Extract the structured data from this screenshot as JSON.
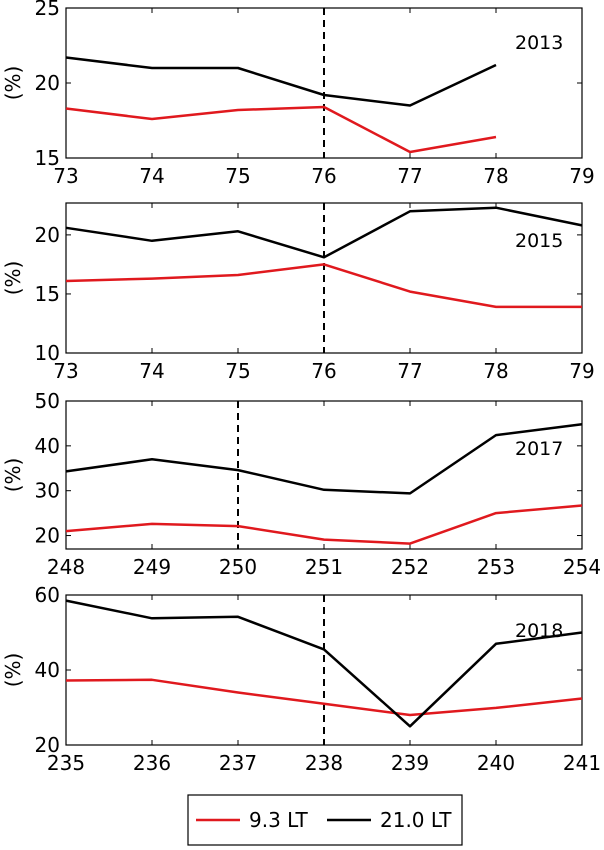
{
  "colors": {
    "series_red": "#e0191e",
    "series_black": "#000000",
    "frame": "#000000"
  },
  "legend": {
    "entries": [
      "9.3 LT",
      "21.0 LT"
    ],
    "placement": "bottom-center"
  },
  "chart_data": [
    {
      "type": "line",
      "year_label": "2013",
      "ylabel": "(%)",
      "xlim": [
        73,
        79
      ],
      "ylim": [
        15,
        25
      ],
      "xticks": [
        73,
        74,
        75,
        76,
        77,
        78,
        79
      ],
      "yticks": [
        15,
        20,
        25
      ],
      "event_x": 76,
      "series": [
        {
          "name": "9.3 LT",
          "color": "#e0191e",
          "x": [
            73,
            74,
            75,
            76,
            77,
            78
          ],
          "y": [
            18.3,
            17.6,
            18.2,
            18.4,
            15.4,
            16.4
          ]
        },
        {
          "name": "21.0 LT",
          "color": "#000000",
          "x": [
            73,
            74,
            75,
            76,
            77,
            78
          ],
          "y": [
            21.7,
            21.0,
            21.0,
            19.2,
            18.5,
            21.2
          ]
        }
      ]
    },
    {
      "type": "line",
      "year_label": "2015",
      "ylabel": "(%)",
      "xlim": [
        73,
        79
      ],
      "ylim": [
        10,
        22.7
      ],
      "xticks": [
        73,
        74,
        75,
        76,
        77,
        78,
        79
      ],
      "yticks": [
        10,
        15,
        20
      ],
      "event_x": 76,
      "series": [
        {
          "name": "9.3 LT",
          "color": "#e0191e",
          "x": [
            73,
            74,
            75,
            76,
            77,
            78,
            79
          ],
          "y": [
            16.1,
            16.3,
            16.6,
            17.5,
            15.2,
            13.9,
            13.9
          ]
        },
        {
          "name": "21.0 LT",
          "color": "#000000",
          "x": [
            73,
            74,
            75,
            76,
            77,
            78,
            79
          ],
          "y": [
            20.6,
            19.5,
            20.3,
            18.1,
            22.0,
            22.3,
            20.8
          ]
        }
      ]
    },
    {
      "type": "line",
      "year_label": "2017",
      "ylabel": "(%)",
      "xlim": [
        248,
        254
      ],
      "ylim": [
        17,
        50
      ],
      "xticks": [
        248,
        249,
        250,
        251,
        252,
        253,
        254
      ],
      "yticks": [
        20,
        30,
        40,
        50
      ],
      "event_x": 250,
      "series": [
        {
          "name": "9.3 LT",
          "color": "#e0191e",
          "x": [
            248,
            249,
            250,
            251,
            252,
            253,
            254
          ],
          "y": [
            21.0,
            22.6,
            22.1,
            19.1,
            18.2,
            25.0,
            26.7
          ]
        },
        {
          "name": "21.0 LT",
          "color": "#000000",
          "x": [
            248,
            249,
            250,
            251,
            252,
            253,
            254
          ],
          "y": [
            34.3,
            37.0,
            34.6,
            30.2,
            29.4,
            42.4,
            44.8
          ]
        }
      ]
    },
    {
      "type": "line",
      "year_label": "2018",
      "ylabel": "(%)",
      "xlim": [
        235,
        241
      ],
      "ylim": [
        20,
        60
      ],
      "xticks": [
        235,
        236,
        237,
        238,
        239,
        240,
        241
      ],
      "yticks": [
        20,
        40,
        60
      ],
      "event_x": 238,
      "series": [
        {
          "name": "9.3 LT",
          "color": "#e0191e",
          "x": [
            235,
            236,
            237,
            238,
            239,
            240,
            241
          ],
          "y": [
            37.2,
            37.4,
            34.0,
            31.0,
            28.0,
            29.9,
            32.4
          ]
        },
        {
          "name": "21.0 LT",
          "color": "#000000",
          "x": [
            235,
            236,
            237,
            238,
            239,
            240,
            241
          ],
          "y": [
            58.5,
            53.8,
            54.2,
            45.5,
            25.0,
            47.0,
            50.0
          ]
        }
      ]
    }
  ]
}
